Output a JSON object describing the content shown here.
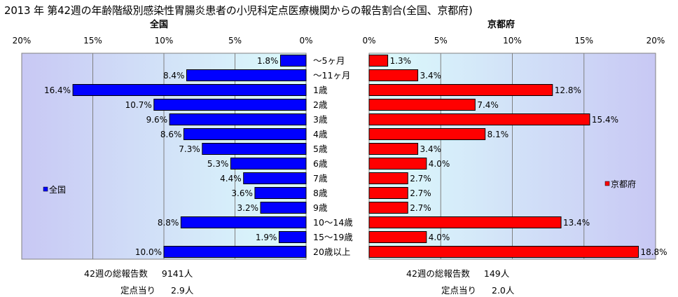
{
  "title": "2013 年 第42週の年齢階級別感染性胃腸炎患者の小児科定点医療機関からの報告割合(全国、京都府)",
  "colors": {
    "national_bar": "#0000ff",
    "kyoto_bar": "#ff0000",
    "plot_bg_light": "#dcfcfc",
    "plot_bg_dark": "#c8c8f4"
  },
  "chart_data": [
    {
      "type": "bar",
      "orientation": "horizontal",
      "direction": "right-to-left",
      "title": "全国",
      "categories": [
        "〜5ヶ月",
        "〜11ヶ月",
        "1歳",
        "2歳",
        "3歳",
        "4歳",
        "5歳",
        "6歳",
        "7歳",
        "8歳",
        "9歳",
        "10〜14歳",
        "15〜19歳",
        "20歳以上"
      ],
      "series": [
        {
          "name": "全国",
          "values": [
            1.8,
            8.4,
            16.4,
            10.7,
            9.6,
            8.6,
            7.3,
            5.3,
            4.4,
            3.6,
            3.2,
            8.8,
            1.9,
            10.0
          ],
          "labels": [
            "1.8%",
            "8.4%",
            "16.4%",
            "10.7%",
            "9.6%",
            "8.6%",
            "7.3%",
            "5.3%",
            "4.4%",
            "3.6%",
            "3.2%",
            "8.8%",
            "1.9%",
            "10.0%"
          ]
        }
      ],
      "xlim": [
        0,
        20
      ],
      "ticks": [
        "20%",
        "15%",
        "10%",
        "5%",
        "0%"
      ],
      "grid": true,
      "legend_position": "left"
    },
    {
      "type": "bar",
      "orientation": "horizontal",
      "direction": "left-to-right",
      "title": "京都府",
      "categories": [
        "〜5ヶ月",
        "〜11ヶ月",
        "1歳",
        "2歳",
        "3歳",
        "4歳",
        "5歳",
        "6歳",
        "7歳",
        "8歳",
        "9歳",
        "10〜14歳",
        "15〜19歳",
        "20歳以上"
      ],
      "series": [
        {
          "name": "京都府",
          "values": [
            1.3,
            3.4,
            12.8,
            7.4,
            15.4,
            8.1,
            3.4,
            4.0,
            2.7,
            2.7,
            2.7,
            13.4,
            4.0,
            18.8
          ],
          "labels": [
            "1.3%",
            "3.4%",
            "12.8%",
            "7.4%",
            "15.4%",
            "8.1%",
            "3.4%",
            "4.0%",
            "2.7%",
            "2.7%",
            "2.7%",
            "13.4%",
            "4.0%",
            "18.8%"
          ]
        }
      ],
      "xlim": [
        0,
        20
      ],
      "ticks": [
        "0%",
        "5%",
        "10%",
        "15%",
        "20%"
      ],
      "grid": true,
      "legend_position": "right"
    }
  ],
  "national_summary": {
    "report_label": "42週の総報告数",
    "report_value": "9141人",
    "per_site_label": "定点当り",
    "per_site_value": "2.9人"
  },
  "kyoto_summary": {
    "report_label": "42週の総報告数",
    "report_value": "149人",
    "per_site_label": "定点当り",
    "per_site_value": "2.0人"
  }
}
